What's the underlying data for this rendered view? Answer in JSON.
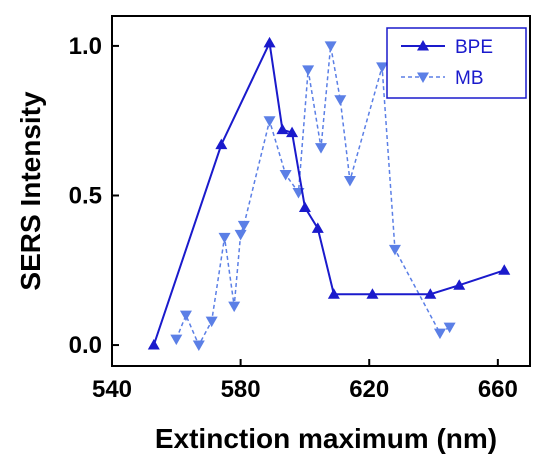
{
  "chart_data": {
    "type": "line",
    "xlabel": "Extinction maximum (nm)",
    "ylabel": "SERS Intensity",
    "xlim": [
      540,
      670
    ],
    "ylim": [
      -0.07,
      1.1
    ],
    "xticks": [
      540,
      580,
      620,
      660
    ],
    "yticks": [
      0.0,
      0.5,
      1.0
    ],
    "xtick_labels": [
      "540",
      "580",
      "620",
      "660"
    ],
    "ytick_labels": [
      "0.0",
      "0.5",
      "1.0"
    ],
    "grid": false,
    "legend_position": "top-right",
    "series": [
      {
        "name": "BPE",
        "color": "#1a1acc",
        "line_style": "solid",
        "marker": "triangle-up",
        "x": [
          553,
          574,
          589,
          593,
          596,
          600,
          604,
          609,
          621,
          639,
          648,
          662
        ],
        "y": [
          0.0,
          0.67,
          1.01,
          0.72,
          0.71,
          0.46,
          0.39,
          0.17,
          0.17,
          0.17,
          0.2,
          0.25
        ]
      },
      {
        "name": "MB",
        "color": "#5b7fe6",
        "line_style": "dashed",
        "marker": "triangle-down",
        "x": [
          560,
          563,
          567,
          571,
          575,
          578,
          580,
          581,
          589,
          594,
          598,
          601,
          605,
          608,
          611,
          614,
          624,
          628,
          642,
          645
        ],
        "y": [
          0.02,
          0.1,
          0.0,
          0.08,
          0.36,
          0.13,
          0.37,
          0.4,
          0.75,
          0.57,
          0.51,
          0.92,
          0.66,
          1.0,
          0.82,
          0.55,
          0.93,
          0.32,
          0.04,
          0.06
        ]
      }
    ]
  }
}
